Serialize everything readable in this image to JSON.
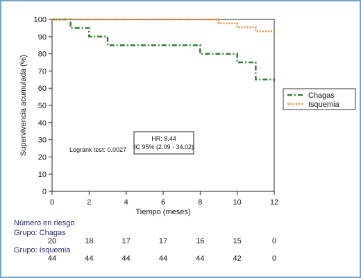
{
  "chart_data": {
    "type": "line",
    "subtype": "kaplan-meier step curve",
    "ylabel": "Supervivencia acumulada (%)",
    "xlabel": "Tiempo (meses)",
    "xlim": [
      0,
      12
    ],
    "ylim": [
      0,
      100
    ],
    "x_ticks": [
      0,
      2,
      4,
      6,
      8,
      10,
      12
    ],
    "y_ticks": [
      0,
      10,
      20,
      30,
      40,
      50,
      60,
      70,
      80,
      90,
      100
    ],
    "grid": false,
    "legend_position": "right",
    "series": [
      {
        "name": "Chagas",
        "color": "#2e7d32",
        "line_style": "dash-dot",
        "x": [
          0,
          1,
          2,
          3,
          8,
          10,
          11,
          12
        ],
        "y": [
          100,
          95,
          90,
          85,
          80,
          75,
          65,
          64
        ]
      },
      {
        "name": "Isquemia",
        "color": "#f08a30",
        "line_style": "dotted",
        "x": [
          0,
          9,
          9.5,
          10,
          11,
          12
        ],
        "y": [
          100,
          97.7,
          97.7,
          95.4,
          93.1,
          91
        ]
      }
    ],
    "annotations": {
      "logrank": "Logrank test: 0.0027",
      "hr": "HR: 8.44",
      "ci": "IC 95% (2.09 - 34.02)"
    }
  },
  "risk_table": {
    "title": "Número en riesgo",
    "groups": [
      {
        "label": "Grupo: Chagas",
        "counts": [
          "20",
          "18",
          "17",
          "17",
          "16",
          "15",
          "0"
        ]
      },
      {
        "label": "Grupo: Isquemia",
        "counts": [
          "44",
          "44",
          "44",
          "44",
          "44",
          "42",
          "0"
        ]
      }
    ]
  },
  "colors": {
    "frame_border": "#6fa6c8",
    "axis": "#222222"
  }
}
